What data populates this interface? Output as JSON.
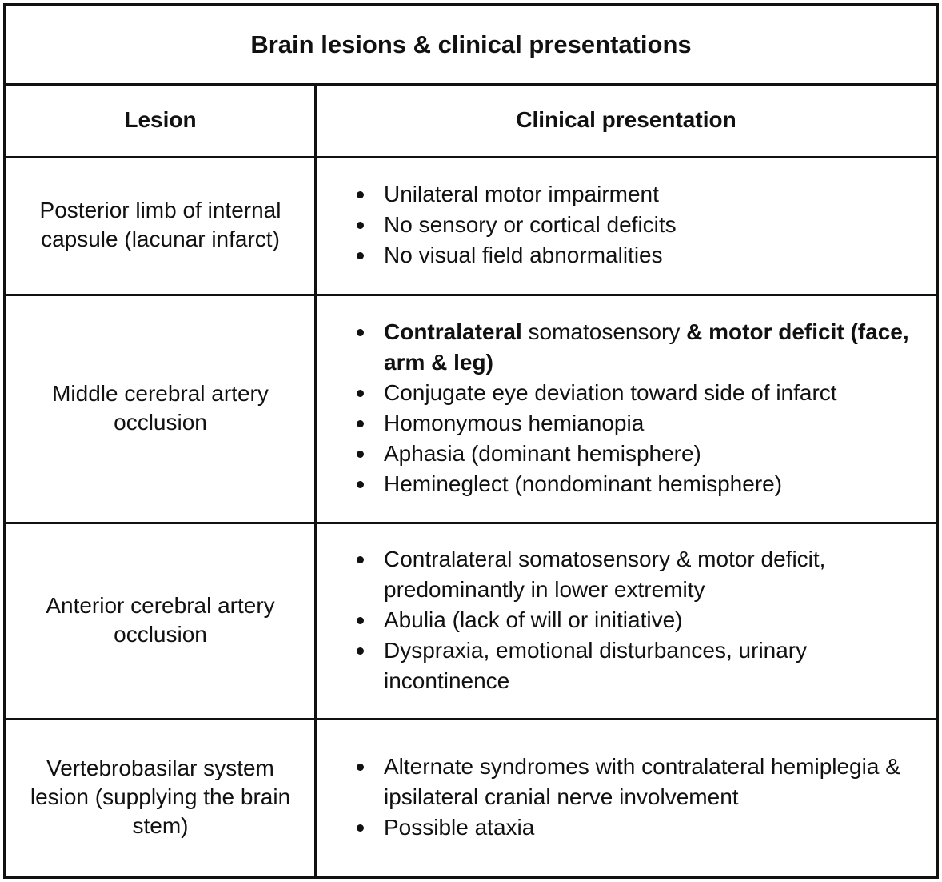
{
  "table": {
    "title": "Brain lesions & clinical presentations",
    "headers": {
      "lesion": "Lesion",
      "presentation": "Clinical presentation"
    },
    "rows": [
      {
        "lesion": "Posterior limb of internal capsule (lacunar infarct)",
        "items": [
          "Unilateral motor impairment",
          "No sensory or cortical deficits",
          "No visual field abnormalities"
        ]
      },
      {
        "lesion": "Middle cerebral artery occlusion",
        "first_item": {
          "bold1": "Contralateral",
          "normal": " somatosensory ",
          "bold2": "& motor deficit (face, arm & leg)"
        },
        "items": [
          "Conjugate eye deviation toward side of infarct",
          "Homonymous hemianopia",
          "Aphasia (dominant hemisphere)",
          "Hemineglect (nondominant hemisphere)"
        ]
      },
      {
        "lesion": "Anterior cerebral artery occlusion",
        "items": [
          "Contralateral somatosensory & motor deficit, predominantly in lower extremity",
          "Abulia (lack of will or initiative)",
          "Dyspraxia, emotional disturbances, urinary incontinence"
        ]
      },
      {
        "lesion": "Vertebrobasilar system lesion (supplying the brain stem)",
        "items": [
          "Alternate syndromes with contralateral hemiplegia & ipsilateral cranial nerve involvement",
          "Possible ataxia"
        ]
      }
    ]
  }
}
